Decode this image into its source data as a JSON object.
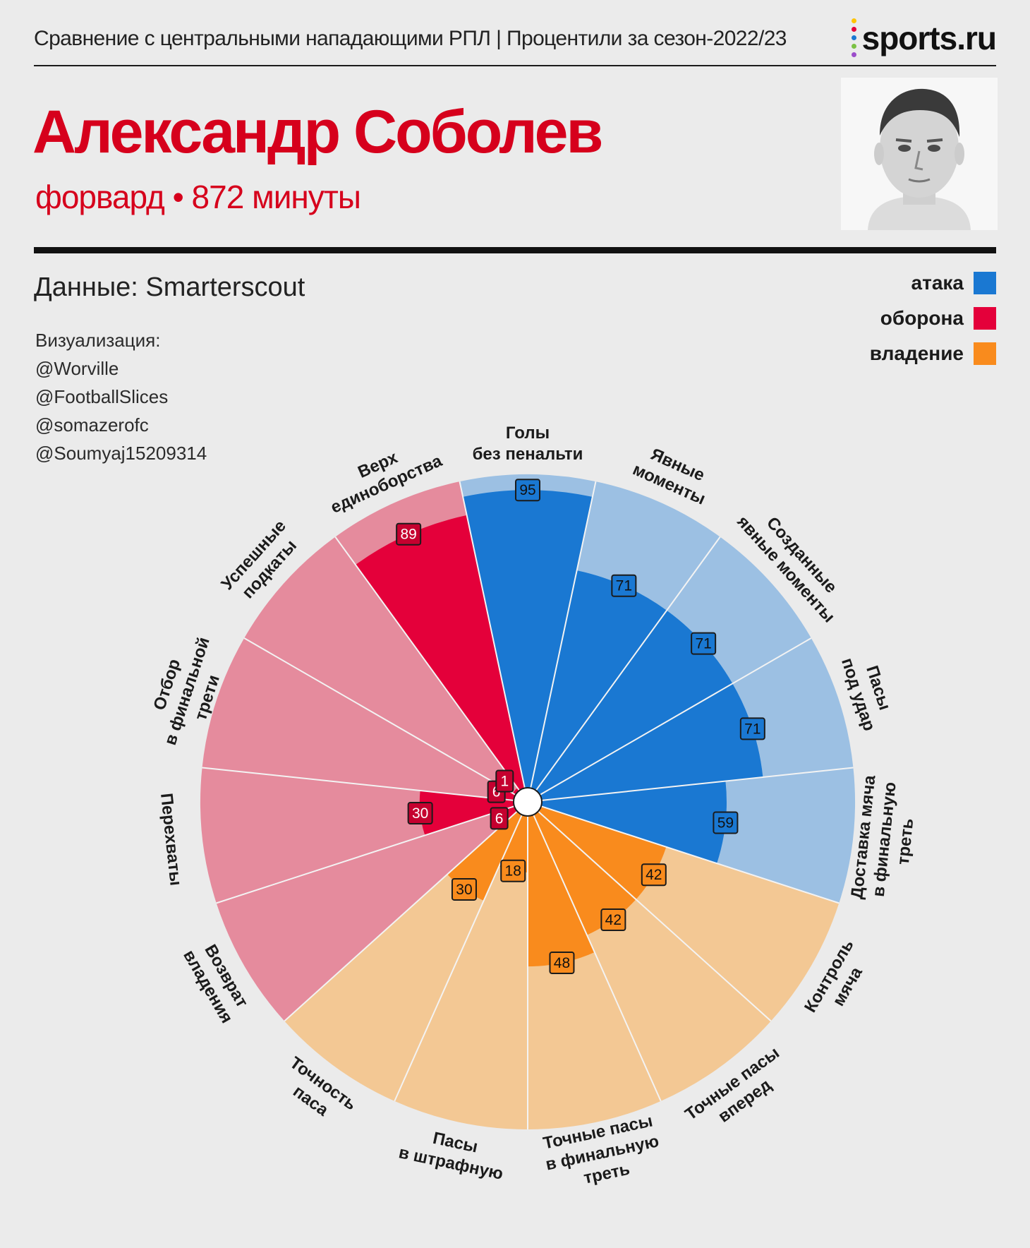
{
  "header": {
    "subtitle": "Сравнение с центральными нападающими РПЛ | Процентили за сезон-2022/23",
    "logo_text": "sports.ru",
    "player_name": "Александр Соболев",
    "player_sub": "форвард • 872 минуты"
  },
  "source": "Данные: Smarterscout",
  "credits": {
    "label": "Визуализация:",
    "authors": [
      "@Worville",
      "@FootballSlices",
      "@somazerofc",
      "@Soumyaj15209314"
    ]
  },
  "legend": [
    {
      "label": "атака",
      "color": "#1a78d2"
    },
    {
      "label": "оборона",
      "color": "#e4003a"
    },
    {
      "label": "владение",
      "color": "#f98b1d"
    }
  ],
  "chart_data": {
    "type": "pizza",
    "scale": [
      0,
      100
    ],
    "categories": [
      "Голы без пенальти",
      "Явные моменты",
      "Созданные явные моменты",
      "Пасы под удар",
      "Доставка мяча в финальную треть",
      "Контроль мяча",
      "Точные пасы вперед",
      "Точные пасы в финальную треть",
      "Пасы в штрафную",
      "Точность паса",
      "Возврат владения",
      "Перехваты",
      "Отбор в финальной трети",
      "Успешные подкаты",
      "Верх единоборства"
    ],
    "label_lines": [
      [
        "Голы",
        "без пенальти"
      ],
      [
        "Явные",
        "моменты"
      ],
      [
        "Созданные",
        "явные моменты"
      ],
      [
        "Пасы",
        "под удар"
      ],
      [
        "Доставка мяча",
        "в финальную",
        "треть"
      ],
      [
        "Контроль",
        "мяча"
      ],
      [
        "Точные пасы",
        "вперед"
      ],
      [
        "Точные пасы",
        "в финальную",
        "треть"
      ],
      [
        "Пасы",
        "в штрафную"
      ],
      [
        "Точность",
        "паса"
      ],
      [
        "Возврат",
        "владения"
      ],
      [
        "Перехваты"
      ],
      [
        "Отбор",
        "в финальной",
        "трети"
      ],
      [
        "Успешные",
        "подкаты"
      ],
      [
        "Верх",
        "единоборства"
      ]
    ],
    "groups": [
      "атака",
      "атака",
      "атака",
      "атака",
      "атака",
      "владение",
      "владение",
      "владение",
      "владение",
      "владение",
      "оборона",
      "оборона",
      "оборона",
      "оборона",
      "оборона"
    ],
    "values": [
      95,
      71,
      71,
      71,
      59,
      42,
      42,
      48,
      18,
      30,
      6,
      30,
      6,
      1,
      89
    ],
    "group_colors": {
      "атака": {
        "bar": "#1a78d2",
        "bg": "#9cc0e3"
      },
      "оборона": {
        "bar": "#e4003a",
        "bg": "#e58b9d"
      },
      "владение": {
        "bar": "#f98b1d",
        "bg": "#f3c894"
      }
    }
  }
}
